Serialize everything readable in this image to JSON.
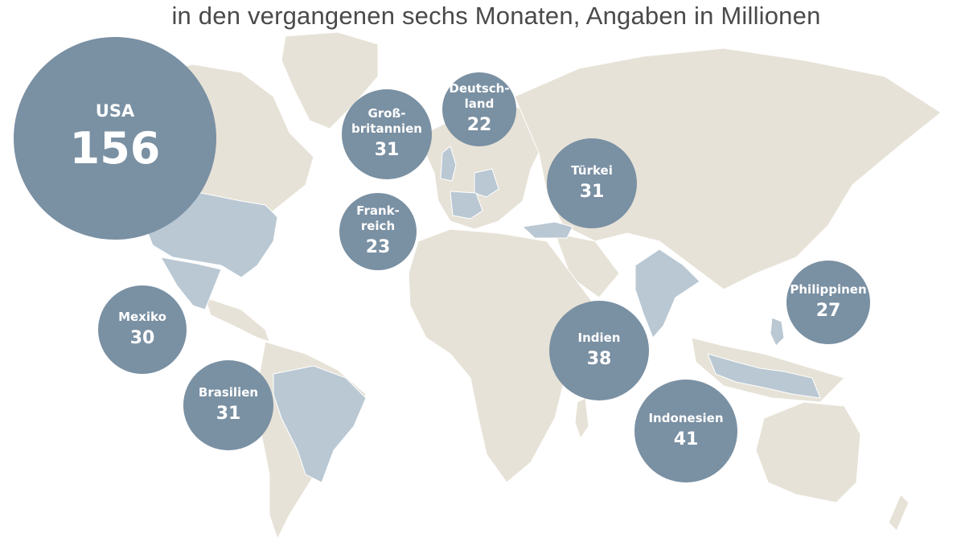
{
  "header": {
    "subtitle": "in den vergangenen sechs Monaten, Angaben in Millionen"
  },
  "map": {
    "land_color": "#e7e2d7",
    "highlight_color": "#b9c8d3",
    "bubble_color": "#7a90a3",
    "countries": [
      {
        "id": "usa",
        "label": "USA",
        "value": "156"
      },
      {
        "id": "gb",
        "label": "Groß-\nbritannien",
        "value": "31"
      },
      {
        "id": "de",
        "label": "Deutsch-\nland",
        "value": "22"
      },
      {
        "id": "fr",
        "label": "Frank-\nreich",
        "value": "23"
      },
      {
        "id": "tr",
        "label": "Türkei",
        "value": "31"
      },
      {
        "id": "mx",
        "label": "Mexiko",
        "value": "30"
      },
      {
        "id": "br",
        "label": "Brasilien",
        "value": "31"
      },
      {
        "id": "in",
        "label": "Indien",
        "value": "38"
      },
      {
        "id": "ph",
        "label": "Philippinen",
        "value": "27"
      },
      {
        "id": "id",
        "label": "Indonesien",
        "value": "41"
      }
    ]
  }
}
